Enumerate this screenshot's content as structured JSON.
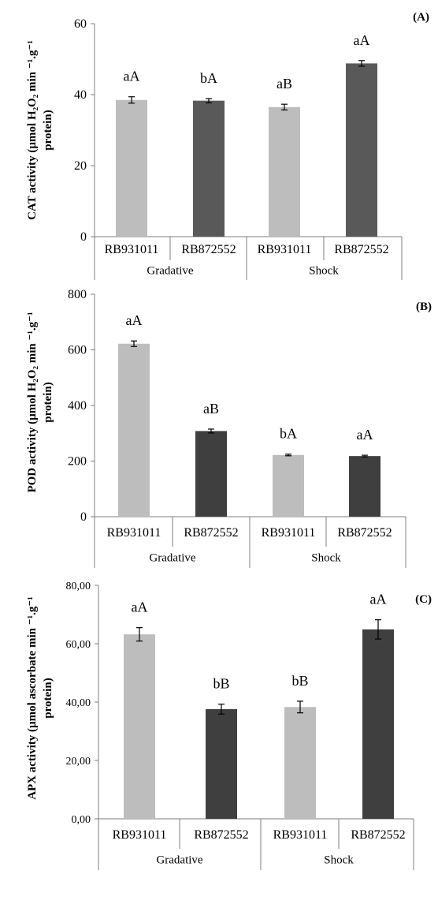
{
  "colors": {
    "series_light": "#bdbdbd",
    "series_dark_A": "#595959",
    "series_dark_BC": "#3f3f3f"
  },
  "chart_data": [
    {
      "type": "bar",
      "panel_label": "(A)",
      "ylabel_line1": "CAT activity (µmol H₂O₂ min ⁻¹.g⁻¹",
      "ylabel_line2": "protein)",
      "ylim": [
        0,
        60
      ],
      "yticks": [
        "0",
        "20",
        "40",
        "60"
      ],
      "ytick_values": [
        0,
        20,
        40,
        60
      ],
      "groups": [
        "Gradative",
        "Shock"
      ],
      "categories": [
        "RB931011",
        "RB872552",
        "RB931011",
        "RB872552"
      ],
      "values": [
        38.5,
        38.3,
        36.5,
        48.8
      ],
      "errors": [
        0.9,
        0.6,
        0.8,
        0.8
      ],
      "bar_labels": [
        "aA",
        "bA",
        "aB",
        "aA"
      ]
    },
    {
      "type": "bar",
      "panel_label": "(B)",
      "ylabel_line1": "POD activity (µmol H₂O₂ min ⁻¹.g⁻¹",
      "ylabel_line2": "protein)",
      "ylim": [
        0,
        800
      ],
      "yticks": [
        "0",
        "200",
        "400",
        "600",
        "800"
      ],
      "ytick_values": [
        0,
        200,
        400,
        600,
        800
      ],
      "groups": [
        "Gradative",
        "Shock"
      ],
      "categories": [
        "RB931011",
        "RB872552",
        "RB931011",
        "RB872552"
      ],
      "values": [
        622,
        308,
        222,
        218
      ],
      "errors": [
        10,
        7,
        3,
        3
      ],
      "bar_labels": [
        "aA",
        "aB",
        "bA",
        "aA"
      ]
    },
    {
      "type": "bar",
      "panel_label": "(C)",
      "ylabel_line1": "APX activity (µmol ascorbate min ⁻¹.g⁻¹",
      "ylabel_line2": "protein)",
      "ylim": [
        0,
        80
      ],
      "yticks": [
        "0,00",
        "20,00",
        "40,00",
        "60,00",
        "80,00"
      ],
      "ytick_values": [
        0,
        20,
        40,
        60,
        80
      ],
      "groups": [
        "Gradative",
        "Shock"
      ],
      "categories": [
        "RB931011",
        "RB872552",
        "RB931011",
        "RB872552"
      ],
      "values": [
        63.2,
        37.6,
        38.3,
        64.9
      ],
      "errors": [
        2.3,
        1.7,
        2.0,
        3.3
      ],
      "bar_labels": [
        "aA",
        "bB",
        "bB",
        "aA"
      ]
    }
  ]
}
